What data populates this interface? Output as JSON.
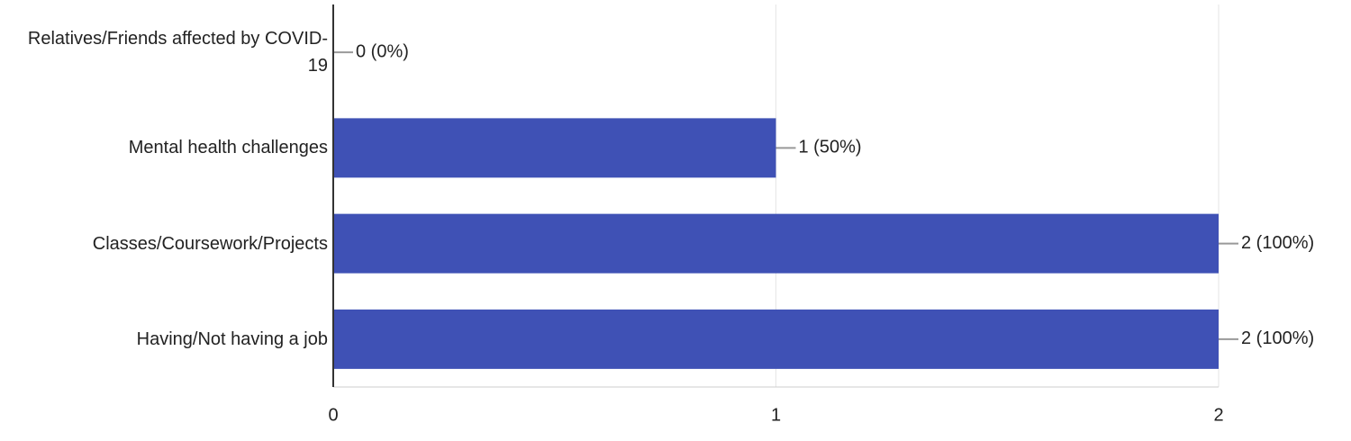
{
  "chart_data": {
    "type": "bar",
    "orientation": "horizontal",
    "categories": [
      "Relatives/Friends affected by COVID-19",
      "Mental health challenges",
      "Classes/Coursework/Projects",
      "Having/Not having a job"
    ],
    "values": [
      0,
      1,
      2,
      2
    ],
    "value_labels": [
      "0 (0%)",
      "1 (50%)",
      "2 (100%)",
      "2 (100%)"
    ],
    "color": "#3f51b5",
    "xlim": [
      0,
      2
    ],
    "xticks": [
      0,
      1,
      2
    ],
    "grid": true
  }
}
